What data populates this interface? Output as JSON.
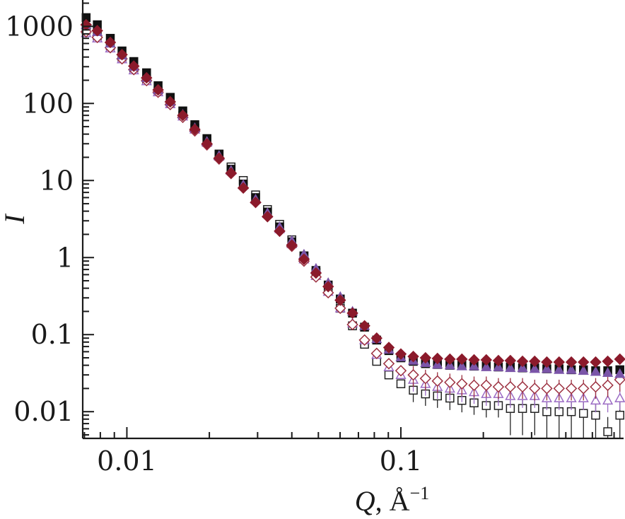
{
  "chart_data": {
    "type": "scatter",
    "title": "",
    "xlabel": "Q, Å⁻¹",
    "xlabel_parts": {
      "symbol": "Q",
      "unit": ", Å",
      "exponent": "−1"
    },
    "ylabel": "I",
    "xscale": "log",
    "yscale": "log",
    "xlim": [
      0.0069,
      0.65
    ],
    "ylim": [
      0.0045,
      2200
    ],
    "x_ticks": [
      {
        "value": 0.01,
        "label": "0.01"
      },
      {
        "value": 0.1,
        "label": "0.1"
      }
    ],
    "y_ticks": [
      {
        "value": 1000,
        "label": "1000"
      },
      {
        "value": 100,
        "label": "100"
      },
      {
        "value": 10,
        "label": "10"
      },
      {
        "value": 1,
        "label": "1"
      },
      {
        "value": 0.1,
        "label": "0.1"
      },
      {
        "value": 0.01,
        "label": "0.01"
      }
    ],
    "grid": false,
    "legend": "none",
    "series": [
      {
        "name": "filled-black-squares",
        "marker": "square",
        "filled": true,
        "color": "#111111",
        "errorbars": false,
        "points": [
          [
            0.0071,
            1300
          ],
          [
            0.0078,
            1050
          ],
          [
            0.0087,
            700
          ],
          [
            0.0096,
            480
          ],
          [
            0.0106,
            350
          ],
          [
            0.0118,
            250
          ],
          [
            0.013,
            170
          ],
          [
            0.0144,
            120
          ],
          [
            0.016,
            80
          ],
          [
            0.0177,
            53
          ],
          [
            0.0196,
            35
          ],
          [
            0.0217,
            22
          ],
          [
            0.024,
            14
          ],
          [
            0.0266,
            9
          ],
          [
            0.0295,
            6
          ],
          [
            0.0326,
            3.9
          ],
          [
            0.0361,
            2.5
          ],
          [
            0.04,
            1.6
          ],
          [
            0.0443,
            1.05
          ],
          [
            0.049,
            0.68
          ],
          [
            0.0543,
            0.44
          ],
          [
            0.0601,
            0.29
          ],
          [
            0.0666,
            0.19
          ],
          [
            0.0737,
            0.125
          ],
          [
            0.0816,
            0.085
          ],
          [
            0.0904,
            0.062
          ],
          [
            0.1,
            0.05
          ],
          [
            0.111,
            0.045
          ],
          [
            0.123,
            0.042
          ],
          [
            0.136,
            0.041
          ],
          [
            0.151,
            0.04
          ],
          [
            0.167,
            0.04
          ],
          [
            0.185,
            0.039
          ],
          [
            0.205,
            0.039
          ],
          [
            0.227,
            0.038
          ],
          [
            0.251,
            0.038
          ],
          [
            0.278,
            0.037
          ],
          [
            0.308,
            0.037
          ],
          [
            0.341,
            0.036
          ],
          [
            0.378,
            0.036
          ],
          [
            0.419,
            0.035
          ],
          [
            0.464,
            0.035
          ],
          [
            0.514,
            0.034
          ],
          [
            0.569,
            0.034
          ],
          [
            0.63,
            0.035
          ]
        ]
      },
      {
        "name": "filled-purple-triangles",
        "marker": "triangle",
        "filled": true,
        "color": "#7b55a8",
        "errorbars": false,
        "points": [
          [
            0.0071,
            1050
          ],
          [
            0.0078,
            850
          ],
          [
            0.0087,
            600
          ],
          [
            0.0096,
            420
          ],
          [
            0.0106,
            300
          ],
          [
            0.0118,
            215
          ],
          [
            0.013,
            150
          ],
          [
            0.0144,
            105
          ],
          [
            0.016,
            72
          ],
          [
            0.0177,
            48
          ],
          [
            0.0196,
            32
          ],
          [
            0.0217,
            21
          ],
          [
            0.024,
            13.5
          ],
          [
            0.0266,
            8.8
          ],
          [
            0.0295,
            5.7
          ],
          [
            0.0326,
            3.8
          ],
          [
            0.0361,
            2.5
          ],
          [
            0.04,
            1.65
          ],
          [
            0.0443,
            1.1
          ],
          [
            0.049,
            0.72
          ],
          [
            0.0543,
            0.47
          ],
          [
            0.0601,
            0.31
          ],
          [
            0.0666,
            0.2
          ],
          [
            0.0737,
            0.13
          ],
          [
            0.0816,
            0.088
          ],
          [
            0.0904,
            0.064
          ],
          [
            0.1,
            0.051
          ],
          [
            0.111,
            0.046
          ],
          [
            0.123,
            0.043
          ],
          [
            0.136,
            0.041
          ],
          [
            0.151,
            0.04
          ],
          [
            0.167,
            0.039
          ],
          [
            0.185,
            0.039
          ],
          [
            0.205,
            0.038
          ],
          [
            0.227,
            0.038
          ],
          [
            0.251,
            0.037
          ],
          [
            0.278,
            0.037
          ],
          [
            0.308,
            0.036
          ],
          [
            0.341,
            0.036
          ],
          [
            0.378,
            0.035
          ],
          [
            0.419,
            0.035
          ],
          [
            0.464,
            0.034
          ],
          [
            0.514,
            0.033
          ],
          [
            0.569,
            0.032
          ],
          [
            0.63,
            0.031
          ]
        ]
      },
      {
        "name": "filled-crimson-diamonds",
        "marker": "diamond",
        "filled": true,
        "color": "#8b1a2b",
        "errorbars": false,
        "points": [
          [
            0.0071,
            1050
          ],
          [
            0.0078,
            880
          ],
          [
            0.0087,
            620
          ],
          [
            0.0096,
            430
          ],
          [
            0.0106,
            305
          ],
          [
            0.0118,
            215
          ],
          [
            0.013,
            150
          ],
          [
            0.0144,
            105
          ],
          [
            0.016,
            70
          ],
          [
            0.0177,
            46
          ],
          [
            0.0196,
            30
          ],
          [
            0.0217,
            19.5
          ],
          [
            0.024,
            12.5
          ],
          [
            0.0266,
            8
          ],
          [
            0.0295,
            5.2
          ],
          [
            0.0326,
            3.4
          ],
          [
            0.0361,
            2.2
          ],
          [
            0.04,
            1.45
          ],
          [
            0.0443,
            0.95
          ],
          [
            0.049,
            0.63
          ],
          [
            0.0543,
            0.42
          ],
          [
            0.0601,
            0.28
          ],
          [
            0.0666,
            0.19
          ],
          [
            0.0737,
            0.13
          ],
          [
            0.0816,
            0.09
          ],
          [
            0.0904,
            0.068
          ],
          [
            0.1,
            0.056
          ],
          [
            0.111,
            0.052
          ],
          [
            0.123,
            0.05
          ],
          [
            0.136,
            0.049
          ],
          [
            0.151,
            0.048
          ],
          [
            0.167,
            0.048
          ],
          [
            0.185,
            0.047
          ],
          [
            0.205,
            0.047
          ],
          [
            0.227,
            0.046
          ],
          [
            0.251,
            0.046
          ],
          [
            0.278,
            0.045
          ],
          [
            0.308,
            0.045
          ],
          [
            0.341,
            0.044
          ],
          [
            0.378,
            0.044
          ],
          [
            0.419,
            0.044
          ],
          [
            0.464,
            0.044
          ],
          [
            0.514,
            0.044
          ],
          [
            0.569,
            0.045
          ],
          [
            0.63,
            0.048
          ]
        ]
      },
      {
        "name": "open-black-squares",
        "marker": "square",
        "filled": false,
        "color": "#222222",
        "errorbars": true,
        "points": [
          [
            0.0071,
            900
          ],
          [
            0.0078,
            760
          ],
          [
            0.0087,
            560
          ],
          [
            0.0096,
            400
          ],
          [
            0.0106,
            290
          ],
          [
            0.0118,
            205
          ],
          [
            0.013,
            145
          ],
          [
            0.0144,
            100
          ],
          [
            0.016,
            70
          ],
          [
            0.0177,
            48
          ],
          [
            0.0196,
            33
          ],
          [
            0.0217,
            22
          ],
          [
            0.024,
            15
          ],
          [
            0.0266,
            10
          ],
          [
            0.0295,
            6.5
          ],
          [
            0.0326,
            4.2
          ],
          [
            0.0361,
            2.7
          ],
          [
            0.04,
            1.7
          ],
          [
            0.0443,
            1.05
          ],
          [
            0.049,
            0.64
          ],
          [
            0.0543,
            0.38
          ],
          [
            0.0601,
            0.22
          ],
          [
            0.0666,
            0.13
          ],
          [
            0.0737,
            0.075
          ],
          [
            0.0816,
            0.045
          ],
          [
            0.0904,
            0.03
          ],
          [
            0.1,
            0.023
          ],
          [
            0.111,
            0.019
          ],
          [
            0.123,
            0.017
          ],
          [
            0.136,
            0.016
          ],
          [
            0.151,
            0.015
          ],
          [
            0.167,
            0.014
          ],
          [
            0.185,
            0.013
          ],
          [
            0.205,
            0.012
          ],
          [
            0.227,
            0.012
          ],
          [
            0.251,
            0.011
          ],
          [
            0.278,
            0.011
          ],
          [
            0.308,
            0.011
          ],
          [
            0.341,
            0.01
          ],
          [
            0.378,
            0.01
          ],
          [
            0.419,
            0.01
          ],
          [
            0.464,
            0.0095
          ],
          [
            0.514,
            0.009
          ],
          [
            0.569,
            0.0055
          ],
          [
            0.63,
            0.009
          ]
        ]
      },
      {
        "name": "open-purple-triangles",
        "marker": "triangle",
        "filled": false,
        "color": "#9b6bc4",
        "errorbars": true,
        "points": [
          [
            0.0071,
            820
          ],
          [
            0.0078,
            700
          ],
          [
            0.0087,
            520
          ],
          [
            0.0096,
            375
          ],
          [
            0.0106,
            270
          ],
          [
            0.0118,
            195
          ],
          [
            0.013,
            140
          ],
          [
            0.0144,
            98
          ],
          [
            0.016,
            68
          ],
          [
            0.0177,
            46
          ],
          [
            0.0196,
            31
          ],
          [
            0.0217,
            20.5
          ],
          [
            0.024,
            13.5
          ],
          [
            0.0266,
            8.8
          ],
          [
            0.0295,
            5.7
          ],
          [
            0.0326,
            3.7
          ],
          [
            0.0361,
            2.35
          ],
          [
            0.04,
            1.5
          ],
          [
            0.0443,
            0.95
          ],
          [
            0.049,
            0.58
          ],
          [
            0.0543,
            0.36
          ],
          [
            0.0601,
            0.22
          ],
          [
            0.0666,
            0.14
          ],
          [
            0.0737,
            0.085
          ],
          [
            0.0816,
            0.055
          ],
          [
            0.0904,
            0.038
          ],
          [
            0.1,
            0.03
          ],
          [
            0.111,
            0.026
          ],
          [
            0.123,
            0.023
          ],
          [
            0.136,
            0.021
          ],
          [
            0.151,
            0.02
          ],
          [
            0.167,
            0.019
          ],
          [
            0.185,
            0.018
          ],
          [
            0.205,
            0.017
          ],
          [
            0.227,
            0.017
          ],
          [
            0.251,
            0.016
          ],
          [
            0.278,
            0.016
          ],
          [
            0.308,
            0.016
          ],
          [
            0.341,
            0.015
          ],
          [
            0.378,
            0.015
          ],
          [
            0.419,
            0.015
          ],
          [
            0.464,
            0.015
          ],
          [
            0.514,
            0.014
          ],
          [
            0.569,
            0.014
          ],
          [
            0.63,
            0.015
          ]
        ]
      },
      {
        "name": "open-crimson-diamonds",
        "marker": "diamond",
        "filled": false,
        "color": "#9c3040",
        "errorbars": true,
        "points": [
          [
            0.0071,
            850
          ],
          [
            0.0078,
            720
          ],
          [
            0.0087,
            530
          ],
          [
            0.0096,
            380
          ],
          [
            0.0106,
            275
          ],
          [
            0.0118,
            198
          ],
          [
            0.013,
            140
          ],
          [
            0.0144,
            97
          ],
          [
            0.016,
            66
          ],
          [
            0.0177,
            44
          ],
          [
            0.0196,
            29
          ],
          [
            0.0217,
            19
          ],
          [
            0.024,
            12.3
          ],
          [
            0.0266,
            8
          ],
          [
            0.0295,
            5.2
          ],
          [
            0.0326,
            3.4
          ],
          [
            0.0361,
            2.2
          ],
          [
            0.04,
            1.4
          ],
          [
            0.0443,
            0.9
          ],
          [
            0.049,
            0.56
          ],
          [
            0.0543,
            0.35
          ],
          [
            0.0601,
            0.22
          ],
          [
            0.0666,
            0.135
          ],
          [
            0.0737,
            0.085
          ],
          [
            0.0816,
            0.057
          ],
          [
            0.0904,
            0.042
          ],
          [
            0.1,
            0.034
          ],
          [
            0.111,
            0.03
          ],
          [
            0.123,
            0.027
          ],
          [
            0.136,
            0.025
          ],
          [
            0.151,
            0.024
          ],
          [
            0.167,
            0.023
          ],
          [
            0.185,
            0.022
          ],
          [
            0.205,
            0.022
          ],
          [
            0.227,
            0.021
          ],
          [
            0.251,
            0.021
          ],
          [
            0.278,
            0.021
          ],
          [
            0.308,
            0.02
          ],
          [
            0.341,
            0.02
          ],
          [
            0.378,
            0.02
          ],
          [
            0.419,
            0.02
          ],
          [
            0.464,
            0.02
          ],
          [
            0.514,
            0.021
          ],
          [
            0.569,
            0.022
          ],
          [
            0.63,
            0.026
          ]
        ]
      }
    ]
  }
}
